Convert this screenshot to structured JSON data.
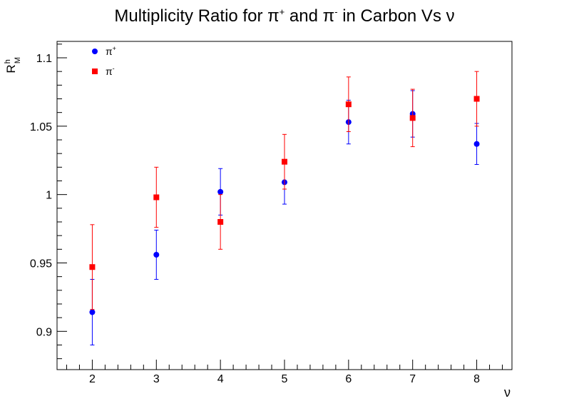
{
  "chart_data": {
    "type": "scatter",
    "title": "Multiplicity Ratio for π⁺ and π⁻ in Carbon Vs ν",
    "title_parts": {
      "prefix": "Multiplicity Ratio for π",
      "sup1": "+",
      "middle": " and π",
      "sup2": "-",
      "suffix": " in Carbon Vs ν"
    },
    "xlabel": "ν",
    "ylabel": "R",
    "ylabel_sup": "h",
    "ylabel_sub": "M",
    "xlim": [
      1.45,
      8.55
    ],
    "ylim": [
      0.872,
      1.112
    ],
    "x_ticks": [
      2,
      3,
      4,
      5,
      6,
      7,
      8
    ],
    "x_tick_labels": [
      "2",
      "3",
      "4",
      "5",
      "6",
      "7",
      "8"
    ],
    "y_ticks": [
      0.9,
      0.95,
      1.0,
      1.05,
      1.1
    ],
    "y_tick_labels": [
      "0.9",
      "0.95",
      "1",
      "1.05",
      "1.1"
    ],
    "grid": false,
    "legend_position": "top-left",
    "series": [
      {
        "name": "π+",
        "legend_base": "π",
        "legend_sup": "+",
        "marker": "circle",
        "color": "#0000ff",
        "x": [
          2,
          3,
          4,
          5,
          6,
          7,
          8
        ],
        "y": [
          0.914,
          0.956,
          1.002,
          1.009,
          1.053,
          1.059,
          1.037
        ],
        "err": [
          0.024,
          0.018,
          0.017,
          0.016,
          0.016,
          0.017,
          0.015
        ]
      },
      {
        "name": "π-",
        "legend_base": "π",
        "legend_sup": "-",
        "marker": "square",
        "color": "#ff0000",
        "x": [
          2,
          3,
          4,
          5,
          6,
          7,
          8
        ],
        "y": [
          0.947,
          0.998,
          0.98,
          1.024,
          1.066,
          1.056,
          1.07
        ],
        "err": [
          0.031,
          0.022,
          0.02,
          0.02,
          0.02,
          0.021,
          0.02
        ]
      }
    ]
  }
}
